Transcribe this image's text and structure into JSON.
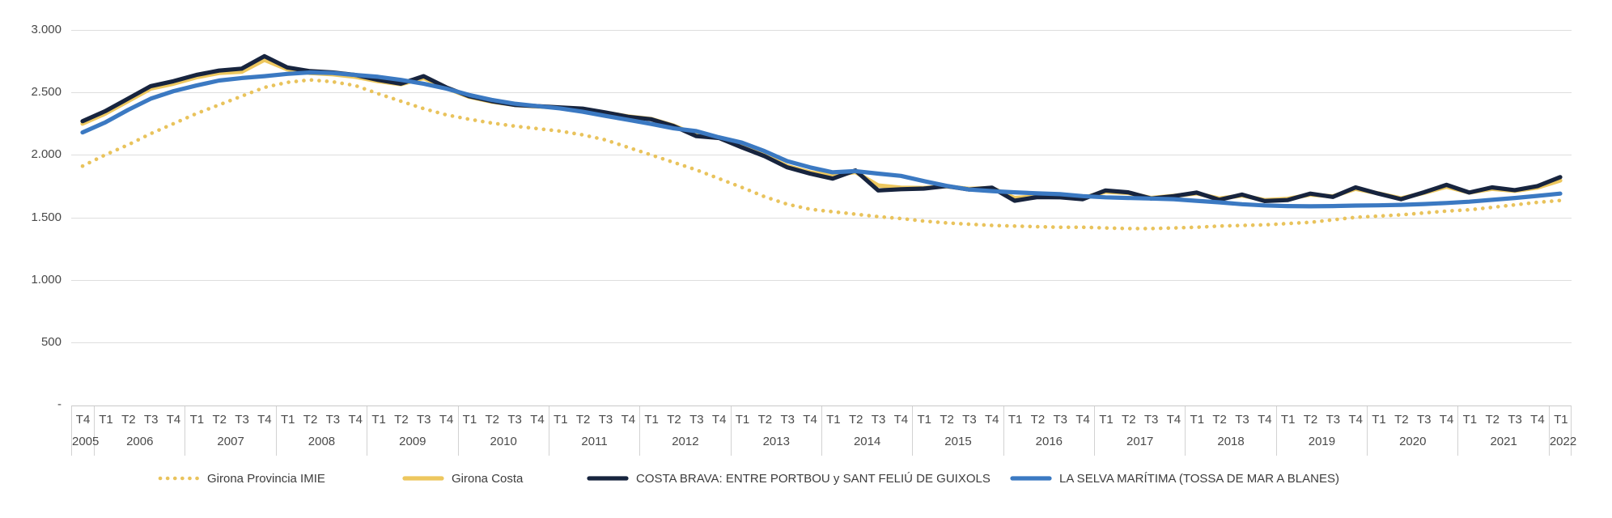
{
  "chart_data": {
    "type": "line",
    "title": "",
    "xlabel": "",
    "ylabel": "",
    "grid": "horizontal",
    "legend_position": "bottom",
    "y_axis": {
      "min": 0,
      "max": 3000,
      "ticks": [
        {
          "value": 3000,
          "label": "3.000"
        },
        {
          "value": 2500,
          "label": "2.500"
        },
        {
          "value": 2000,
          "label": "2.000"
        },
        {
          "value": 1500,
          "label": "1.500"
        },
        {
          "value": 1000,
          "label": "1.000"
        },
        {
          "value": 500,
          "label": "500"
        },
        {
          "value": 0,
          "label": "-"
        }
      ]
    },
    "x_axis": {
      "years": [
        {
          "label": "2005",
          "quarters": [
            "T4"
          ]
        },
        {
          "label": "2006",
          "quarters": [
            "T1",
            "T2",
            "T3",
            "T4"
          ]
        },
        {
          "label": "2007",
          "quarters": [
            "T1",
            "T2",
            "T3",
            "T4"
          ]
        },
        {
          "label": "2008",
          "quarters": [
            "T1",
            "T2",
            "T3",
            "T4"
          ]
        },
        {
          "label": "2009",
          "quarters": [
            "T1",
            "T2",
            "T3",
            "T4"
          ]
        },
        {
          "label": "2010",
          "quarters": [
            "T1",
            "T2",
            "T3",
            "T4"
          ]
        },
        {
          "label": "2011",
          "quarters": [
            "T1",
            "T2",
            "T3",
            "T4"
          ]
        },
        {
          "label": "2012",
          "quarters": [
            "T1",
            "T2",
            "T3",
            "T4"
          ]
        },
        {
          "label": "2013",
          "quarters": [
            "T1",
            "T2",
            "T3",
            "T4"
          ]
        },
        {
          "label": "2014",
          "quarters": [
            "T1",
            "T2",
            "T3",
            "T4"
          ]
        },
        {
          "label": "2015",
          "quarters": [
            "T1",
            "T2",
            "T3",
            "T4"
          ]
        },
        {
          "label": "2016",
          "quarters": [
            "T1",
            "T2",
            "T3",
            "T4"
          ]
        },
        {
          "label": "2017",
          "quarters": [
            "T1",
            "T2",
            "T3",
            "T4"
          ]
        },
        {
          "label": "2018",
          "quarters": [
            "T1",
            "T2",
            "T3",
            "T4"
          ]
        },
        {
          "label": "2019",
          "quarters": [
            "T1",
            "T2",
            "T3",
            "T4"
          ]
        },
        {
          "label": "2020",
          "quarters": [
            "T1",
            "T2",
            "T3",
            "T4"
          ]
        },
        {
          "label": "2021",
          "quarters": [
            "T1",
            "T2",
            "T3",
            "T4"
          ]
        },
        {
          "label": "2022",
          "quarters": [
            "T1"
          ]
        }
      ]
    },
    "series": [
      {
        "name": "Girona Provincia IMIE",
        "color": "#e9c35c",
        "style": "dotted",
        "values": [
          1910,
          2000,
          2080,
          2170,
          2250,
          2330,
          2400,
          2470,
          2540,
          2580,
          2600,
          2585,
          2555,
          2490,
          2430,
          2370,
          2320,
          2285,
          2255,
          2230,
          2210,
          2190,
          2160,
          2120,
          2060,
          2000,
          1940,
          1880,
          1810,
          1740,
          1665,
          1605,
          1565,
          1545,
          1525,
          1505,
          1490,
          1470,
          1455,
          1445,
          1435,
          1430,
          1425,
          1420,
          1420,
          1415,
          1410,
          1410,
          1415,
          1420,
          1430,
          1435,
          1440,
          1450,
          1460,
          1480,
          1500,
          1510,
          1520,
          1535,
          1550,
          1560,
          1580,
          1600,
          1620,
          1635
        ]
      },
      {
        "name": "Girona Costa",
        "color": "#edc75e",
        "style": "solid",
        "values": [
          2250,
          2330,
          2430,
          2530,
          2570,
          2620,
          2655,
          2665,
          2760,
          2685,
          2655,
          2645,
          2625,
          2590,
          2565,
          2615,
          2535,
          2465,
          2425,
          2400,
          2388,
          2378,
          2365,
          2338,
          2308,
          2288,
          2235,
          2160,
          2140,
          2065,
          1995,
          1910,
          1860,
          1835,
          1862,
          1755,
          1738,
          1735,
          1748,
          1728,
          1735,
          1655,
          1668,
          1665,
          1655,
          1705,
          1695,
          1655,
          1672,
          1692,
          1650,
          1675,
          1638,
          1648,
          1682,
          1668,
          1728,
          1692,
          1652,
          1695,
          1745,
          1698,
          1728,
          1712,
          1738,
          1795
        ]
      },
      {
        "name": "COSTA BRAVA: ENTRE PORTBOU y SANT FELIÚ DE GUIXOLS",
        "color": "#17243e",
        "style": "solid",
        "values": [
          2270,
          2350,
          2450,
          2550,
          2590,
          2640,
          2675,
          2690,
          2790,
          2700,
          2670,
          2660,
          2640,
          2600,
          2570,
          2630,
          2540,
          2470,
          2430,
          2400,
          2390,
          2380,
          2370,
          2340,
          2305,
          2285,
          2230,
          2150,
          2135,
          2060,
          1990,
          1900,
          1850,
          1810,
          1875,
          1715,
          1725,
          1730,
          1750,
          1722,
          1738,
          1633,
          1662,
          1660,
          1645,
          1715,
          1700,
          1650,
          1670,
          1698,
          1640,
          1682,
          1630,
          1638,
          1690,
          1663,
          1740,
          1690,
          1645,
          1700,
          1760,
          1698,
          1740,
          1718,
          1750,
          1822
        ]
      },
      {
        "name": "LA SELVA MARÍTIMA (TOSSA DE MAR A BLANES)",
        "color": "#3b79c2",
        "style": "solid",
        "values": [
          2180,
          2260,
          2360,
          2450,
          2510,
          2555,
          2595,
          2615,
          2630,
          2648,
          2660,
          2655,
          2640,
          2625,
          2600,
          2570,
          2530,
          2480,
          2440,
          2410,
          2390,
          2372,
          2345,
          2312,
          2280,
          2248,
          2212,
          2190,
          2140,
          2098,
          2030,
          1950,
          1900,
          1860,
          1870,
          1850,
          1832,
          1790,
          1752,
          1722,
          1710,
          1700,
          1692,
          1685,
          1670,
          1660,
          1655,
          1650,
          1645,
          1632,
          1620,
          1605,
          1595,
          1590,
          1588,
          1590,
          1594,
          1596,
          1600,
          1606,
          1615,
          1625,
          1640,
          1655,
          1672,
          1690
        ]
      }
    ]
  }
}
